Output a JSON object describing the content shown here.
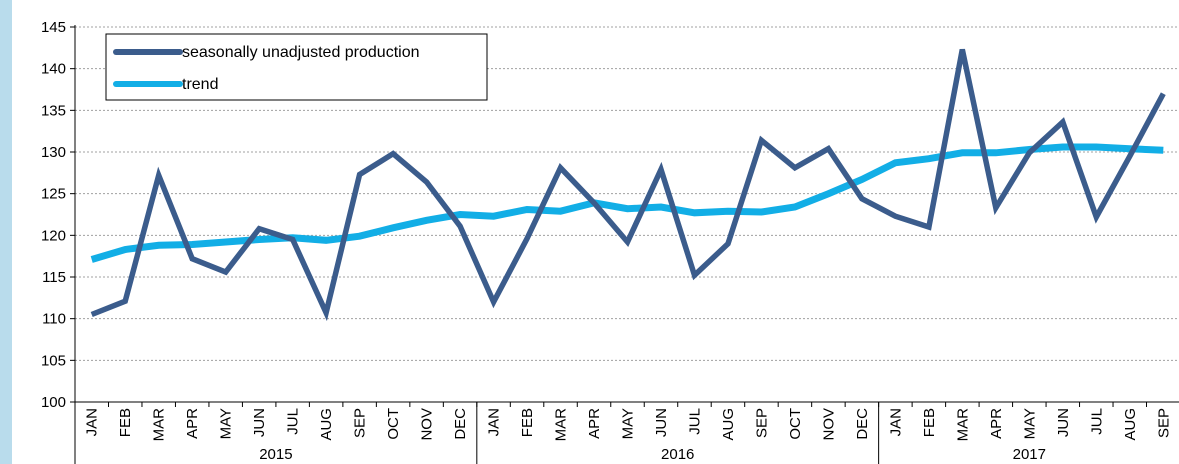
{
  "colors": {
    "background": "#ffffff",
    "side_stripe": "#b9dcec",
    "gridline": "#a0a0a0",
    "axis": "#000000"
  },
  "chart_data": {
    "type": "line",
    "title": "",
    "xlabel": "",
    "ylabel": "",
    "ylim": [
      100,
      145
    ],
    "yticks": [
      100,
      105,
      110,
      115,
      120,
      125,
      130,
      135,
      140,
      145
    ],
    "grid": "horizontal dashed",
    "legend_position": "top-left",
    "categories": [
      "JAN",
      "FEB",
      "MAR",
      "APR",
      "MAY",
      "JUN",
      "JUL",
      "AUG",
      "SEP",
      "OCT",
      "NOV",
      "DEC",
      "JAN",
      "FEB",
      "MAR",
      "APR",
      "MAY",
      "JUN",
      "JUL",
      "AUG",
      "SEP",
      "OCT",
      "NOV",
      "DEC",
      "JAN",
      "FEB",
      "MAR",
      "APR",
      "MAY",
      "JUN",
      "JUL",
      "AUG",
      "SEP"
    ],
    "year_groups": [
      {
        "label": "2015",
        "count": 12
      },
      {
        "label": "2016",
        "count": 12
      },
      {
        "label": "2017",
        "count": 9
      }
    ],
    "series": [
      {
        "name": "seasonally unadjusted production",
        "color": "#3b5c8c",
        "values": [
          110.5,
          112.1,
          127.2,
          117.2,
          115.6,
          120.8,
          119.5,
          110.7,
          127.3,
          129.8,
          126.4,
          121.1,
          112.0,
          119.6,
          128.1,
          123.9,
          119.2,
          127.9,
          115.2,
          119.0,
          131.4,
          128.1,
          130.4,
          124.4,
          122.3,
          121.0,
          142.3,
          123.3,
          129.9,
          133.6,
          122.2,
          129.5,
          137.0
        ]
      },
      {
        "name": "trend",
        "color": "#12aee6",
        "values": [
          117.1,
          118.3,
          118.8,
          118.9,
          119.2,
          119.5,
          119.7,
          119.4,
          119.9,
          120.9,
          121.8,
          122.5,
          122.3,
          123.1,
          122.9,
          123.9,
          123.2,
          123.4,
          122.7,
          122.9,
          122.8,
          123.4,
          125.0,
          126.7,
          128.7,
          129.2,
          129.9,
          129.9,
          130.3,
          130.6,
          130.6,
          130.4,
          130.2
        ]
      }
    ]
  }
}
